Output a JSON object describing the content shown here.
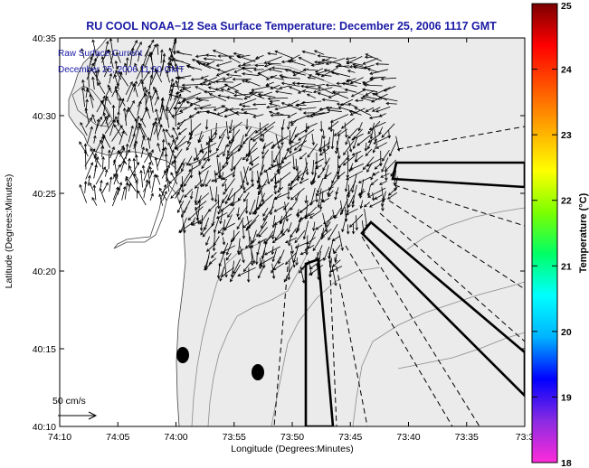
{
  "chart_data": {
    "type": "vector-field map",
    "title": "RU COOL  NOAA−12  Sea Surface Temperature:  December 25, 2006 1117 GMT",
    "annotation_line1": "Raw Surface Current",
    "annotation_line2": "December 25, 2006 11:00 GMT",
    "xlabel": "Longitude (Degrees:Minutes)",
    "ylabel": "Latitude (Degrees:Minutes)",
    "x_ticks": [
      "74:10",
      "74:05",
      "74:00",
      "73:55",
      "73:50",
      "73:45",
      "73:40",
      "73:35",
      "73:3"
    ],
    "y_ticks": [
      "40:35",
      "40:30",
      "40:25",
      "40:20",
      "40:15",
      "40:10"
    ],
    "xlim_minutes": [
      4450,
      4410
    ],
    "ylim_minutes": [
      2410,
      2435
    ],
    "scale_label": "50 cm/s",
    "colorbar": {
      "label": "Temperature (°C)",
      "ticks": [
        "25",
        "24",
        "23",
        "22",
        "21",
        "20",
        "19",
        "18"
      ],
      "range": [
        18,
        25
      ],
      "colors": [
        "#ff2bd9",
        "#8a2be2",
        "#0000ff",
        "#00b3ff",
        "#00ffff",
        "#00ff66",
        "#7cff00",
        "#ffff00",
        "#ffaa00",
        "#ff5500",
        "#ff0000",
        "#7a0000"
      ]
    },
    "colors": {
      "title": "#1a1aa6",
      "land": "#ffffff",
      "water": "#ebebeb",
      "vectors": "#000000"
    }
  }
}
